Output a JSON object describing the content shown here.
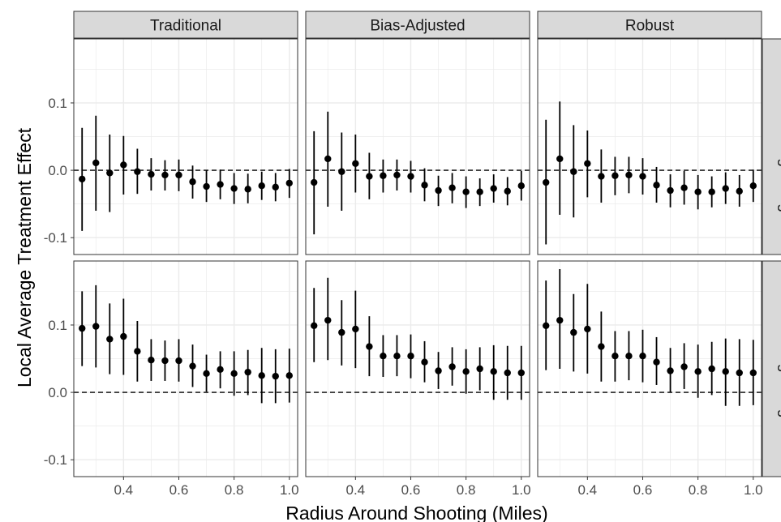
{
  "chart_data": {
    "type": "scatter",
    "variant": "point estimates with 95% confidence interval error bars, faceted grid",
    "xlabel": "Radius Around Shooting (Miles)",
    "ylabel": "Local Average Treatment Effect",
    "xlim": [
      0.22,
      1.03
    ],
    "ylim": [
      -0.125,
      0.195
    ],
    "x_ticks": [
      0.4,
      0.6,
      0.8,
      1.0
    ],
    "x_tick_labels": [
      "0.4",
      "0.6",
      "0.8",
      "1.0"
    ],
    "y_ticks": [
      -0.1,
      0.0,
      0.1
    ],
    "y_tick_labels": [
      "-0.1",
      "0.0",
      "0.1"
    ],
    "reference_line": {
      "y": 0,
      "style": "dashed"
    },
    "grid": true,
    "legend": "none",
    "colors": {
      "points": "#000000",
      "strip": "#d9d9d9",
      "grid": "#ebebeb",
      "border": "#333333"
    },
    "columns": [
      "Traditional",
      "Bias-Adjusted",
      "Robust"
    ],
    "rows": [
      "Non-Trending Killings",
      "Trending Killings"
    ],
    "x": [
      0.25,
      0.3,
      0.35,
      0.4,
      0.45,
      0.5,
      0.55,
      0.6,
      0.65,
      0.7,
      0.75,
      0.8,
      0.85,
      0.9,
      0.95,
      1.0
    ],
    "panels": [
      {
        "row": "Non-Trending Killings",
        "column": "Traditional",
        "y": [
          -0.013,
          0.011,
          -0.004,
          0.008,
          -0.002,
          -0.006,
          -0.007,
          -0.007,
          -0.017,
          -0.024,
          -0.021,
          -0.027,
          -0.028,
          -0.023,
          -0.025,
          -0.019
        ],
        "lo": [
          -0.09,
          -0.06,
          -0.062,
          -0.036,
          -0.035,
          -0.03,
          -0.03,
          -0.031,
          -0.042,
          -0.047,
          -0.043,
          -0.05,
          -0.049,
          -0.044,
          -0.046,
          -0.041
        ],
        "hi": [
          0.063,
          0.081,
          0.053,
          0.051,
          0.032,
          0.018,
          0.015,
          0.016,
          0.007,
          0.0,
          0.001,
          -0.004,
          -0.005,
          -0.002,
          -0.004,
          0.002
        ]
      },
      {
        "row": "Non-Trending Killings",
        "column": "Bias-Adjusted",
        "y": [
          -0.018,
          0.017,
          -0.002,
          0.01,
          -0.009,
          -0.008,
          -0.007,
          -0.009,
          -0.022,
          -0.03,
          -0.026,
          -0.032,
          -0.032,
          -0.027,
          -0.031,
          -0.023
        ],
        "lo": [
          -0.095,
          -0.054,
          -0.06,
          -0.033,
          -0.043,
          -0.033,
          -0.03,
          -0.033,
          -0.046,
          -0.053,
          -0.049,
          -0.056,
          -0.053,
          -0.048,
          -0.052,
          -0.045
        ],
        "hi": [
          0.058,
          0.087,
          0.056,
          0.053,
          0.026,
          0.016,
          0.016,
          0.014,
          0.003,
          -0.008,
          -0.004,
          -0.009,
          -0.012,
          -0.006,
          -0.01,
          -0.001
        ]
      },
      {
        "row": "Non-Trending Killings",
        "column": "Robust",
        "y": [
          -0.018,
          0.017,
          -0.002,
          0.01,
          -0.009,
          -0.008,
          -0.007,
          -0.009,
          -0.022,
          -0.03,
          -0.026,
          -0.032,
          -0.032,
          -0.027,
          -0.031,
          -0.023
        ],
        "lo": [
          -0.11,
          -0.066,
          -0.07,
          -0.04,
          -0.048,
          -0.037,
          -0.034,
          -0.036,
          -0.048,
          -0.055,
          -0.051,
          -0.058,
          -0.055,
          -0.05,
          -0.054,
          -0.047
        ],
        "hi": [
          0.075,
          0.102,
          0.067,
          0.059,
          0.031,
          0.02,
          0.02,
          0.018,
          0.005,
          -0.006,
          -0.001,
          -0.007,
          -0.009,
          -0.003,
          -0.007,
          0.001
        ]
      },
      {
        "row": "Trending Killings",
        "column": "Traditional",
        "y": [
          0.095,
          0.098,
          0.079,
          0.083,
          0.061,
          0.048,
          0.047,
          0.047,
          0.039,
          0.028,
          0.034,
          0.028,
          0.03,
          0.025,
          0.024,
          0.025
        ],
        "lo": [
          0.039,
          0.037,
          0.027,
          0.026,
          0.016,
          0.017,
          0.017,
          0.016,
          0.008,
          0.001,
          0.006,
          -0.005,
          -0.004,
          -0.016,
          -0.016,
          -0.015
        ],
        "hi": [
          0.15,
          0.159,
          0.132,
          0.139,
          0.106,
          0.079,
          0.077,
          0.079,
          0.071,
          0.056,
          0.061,
          0.061,
          0.063,
          0.066,
          0.064,
          0.065
        ]
      },
      {
        "row": "Trending Killings",
        "column": "Bias-Adjusted",
        "y": [
          0.099,
          0.107,
          0.089,
          0.094,
          0.068,
          0.054,
          0.054,
          0.054,
          0.045,
          0.032,
          0.038,
          0.031,
          0.035,
          0.031,
          0.029,
          0.029
        ],
        "lo": [
          0.045,
          0.048,
          0.04,
          0.036,
          0.024,
          0.023,
          0.024,
          0.021,
          0.015,
          0.005,
          0.01,
          -0.002,
          0.003,
          -0.011,
          -0.011,
          -0.011
        ],
        "hi": [
          0.155,
          0.17,
          0.137,
          0.151,
          0.113,
          0.085,
          0.085,
          0.086,
          0.076,
          0.06,
          0.067,
          0.064,
          0.067,
          0.07,
          0.069,
          0.069
        ]
      },
      {
        "row": "Trending Killings",
        "column": "Robust",
        "y": [
          0.099,
          0.107,
          0.089,
          0.094,
          0.068,
          0.054,
          0.054,
          0.054,
          0.045,
          0.032,
          0.038,
          0.031,
          0.035,
          0.031,
          0.029,
          0.029
        ],
        "lo": [
          0.033,
          0.035,
          0.031,
          0.028,
          0.016,
          0.016,
          0.018,
          0.015,
          0.011,
          0.0,
          0.005,
          -0.008,
          -0.004,
          -0.02,
          -0.02,
          -0.019
        ],
        "hi": [
          0.166,
          0.183,
          0.146,
          0.161,
          0.12,
          0.091,
          0.091,
          0.093,
          0.082,
          0.066,
          0.073,
          0.071,
          0.075,
          0.08,
          0.079,
          0.078
        ]
      }
    ]
  }
}
